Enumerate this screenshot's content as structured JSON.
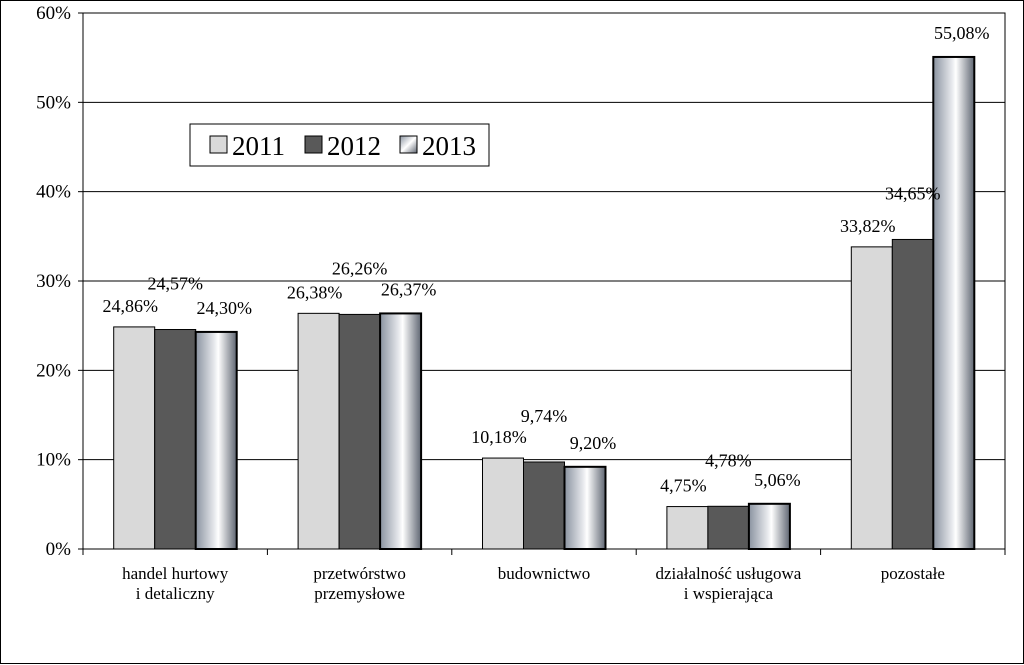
{
  "chart_data": {
    "type": "bar",
    "categories": [
      [
        "handel hurtowy",
        "i detaliczny"
      ],
      [
        "przetwórstwo",
        "przemysłowe"
      ],
      [
        "budownictwo"
      ],
      [
        "działalność usługowa",
        "i wspierająca"
      ],
      [
        "pozostałe"
      ]
    ],
    "series": [
      {
        "name": "2011",
        "values": [
          24.86,
          26.38,
          10.18,
          4.75,
          33.82
        ],
        "labels": [
          "24,86%",
          "26,38%",
          "10,18%",
          "4,75%",
          "33,82%"
        ],
        "color": "#d9d9d9"
      },
      {
        "name": "2012",
        "values": [
          24.57,
          26.26,
          9.74,
          4.78,
          34.65
        ],
        "labels": [
          "24,57%",
          "26,26%",
          "9,74%",
          "4,78%",
          "34,65%"
        ],
        "color": "#595959"
      },
      {
        "name": "2013",
        "values": [
          24.3,
          26.37,
          9.2,
          5.06,
          55.08
        ],
        "labels": [
          "24,30%",
          "26,37%",
          "9,20%",
          "5,06%",
          "55,08%"
        ],
        "color": "gradient"
      }
    ],
    "yticks": [
      0,
      10,
      20,
      30,
      40,
      50,
      60
    ],
    "ytick_labels": [
      "0%",
      "10%",
      "20%",
      "30%",
      "40%",
      "50%",
      "60%"
    ],
    "ylim": [
      0,
      60
    ],
    "grid": true,
    "legend_position": "upper-left"
  }
}
